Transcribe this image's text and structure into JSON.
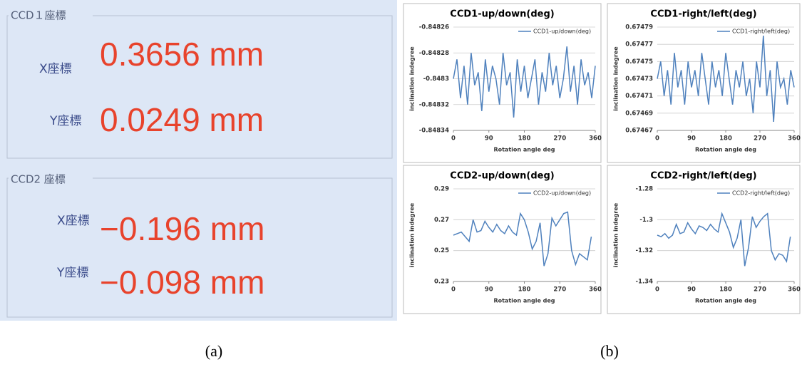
{
  "panel_a": {
    "sections": [
      {
        "heading": "CCD１座標",
        "rows": [
          {
            "label": "X座標",
            "value": "0.3656 mm"
          },
          {
            "label": "Y座標",
            "value": "0.0249 mm"
          }
        ]
      },
      {
        "heading": "CCD2 座標",
        "rows": [
          {
            "label": "X座標",
            "value": "−0.196 mm"
          },
          {
            "label": "Y座標",
            "value": "−0.098 mm"
          }
        ]
      }
    ]
  },
  "captions": [
    "(a)",
    "(b)"
  ],
  "chart_data": [
    {
      "type": "line",
      "title": "CCD1-up/down(deg)",
      "xlabel": "Rotation angle deg",
      "ylabel": "inclination indegree",
      "x": [
        0,
        9,
        18,
        27,
        36,
        45,
        54,
        63,
        72,
        81,
        90,
        99,
        108,
        117,
        126,
        135,
        144,
        153,
        162,
        171,
        180,
        189,
        198,
        207,
        216,
        225,
        234,
        243,
        252,
        261,
        270,
        279,
        288,
        297,
        306,
        315,
        324,
        333,
        342,
        351,
        360
      ],
      "series": [
        {
          "name": "CCD1-up/down(deg)",
          "color": "#4f81bd",
          "values": [
            -0.8483,
            -0.848285,
            -0.848315,
            -0.84829,
            -0.84832,
            -0.84828,
            -0.848305,
            -0.848295,
            -0.848325,
            -0.848285,
            -0.84831,
            -0.84829,
            -0.8483,
            -0.84832,
            -0.84828,
            -0.848305,
            -0.848295,
            -0.84833,
            -0.848285,
            -0.84831,
            -0.84829,
            -0.848315,
            -0.8483,
            -0.848285,
            -0.84832,
            -0.848295,
            -0.84831,
            -0.84828,
            -0.848305,
            -0.84829,
            -0.848315,
            -0.8483,
            -0.848275,
            -0.84831,
            -0.84829,
            -0.84832,
            -0.848285,
            -0.848305,
            -0.848295,
            -0.848315,
            -0.84829
          ]
        }
      ],
      "xlim": [
        0,
        360
      ],
      "xticks": [
        0,
        90,
        180,
        270,
        360
      ],
      "ylim": [
        -0.84834,
        -0.84826
      ],
      "yticks": [
        -0.84826,
        -0.84828,
        -0.8483,
        -0.84832,
        -0.84834
      ],
      "grid": true,
      "legend": "upper right"
    },
    {
      "type": "line",
      "title": "CCD1-right/left(deg)",
      "xlabel": "Rotation angle deg",
      "ylabel": "inclination indegree",
      "x": [
        0,
        9,
        18,
        27,
        36,
        45,
        54,
        63,
        72,
        81,
        90,
        99,
        108,
        117,
        126,
        135,
        144,
        153,
        162,
        171,
        180,
        189,
        198,
        207,
        216,
        225,
        234,
        243,
        252,
        261,
        270,
        279,
        288,
        297,
        306,
        315,
        324,
        333,
        342,
        351,
        360
      ],
      "series": [
        {
          "name": "CCD1-right/left(deg)",
          "color": "#4f81bd",
          "values": [
            0.67473,
            0.67475,
            0.67471,
            0.67474,
            0.6747,
            0.67476,
            0.67472,
            0.67474,
            0.6747,
            0.67475,
            0.67472,
            0.67474,
            0.67471,
            0.67476,
            0.67473,
            0.6747,
            0.67475,
            0.67472,
            0.67474,
            0.67471,
            0.67476,
            0.67473,
            0.6747,
            0.67474,
            0.67472,
            0.67475,
            0.67471,
            0.67473,
            0.67469,
            0.67475,
            0.67472,
            0.67478,
            0.67471,
            0.67474,
            0.67468,
            0.67475,
            0.67472,
            0.67473,
            0.6747,
            0.67474,
            0.67472
          ]
        }
      ],
      "xlim": [
        0,
        360
      ],
      "xticks": [
        0,
        90,
        180,
        270,
        360
      ],
      "ylim": [
        0.67467,
        0.67479
      ],
      "yticks": [
        0.67479,
        0.67477,
        0.67475,
        0.67473,
        0.67471,
        0.67469,
        0.67467
      ],
      "grid": true,
      "legend": "upper right"
    },
    {
      "type": "line",
      "title": "CCD2-up/down(deg)",
      "xlabel": "Rotation angle deg",
      "ylabel": "inclination indegree",
      "x": [
        0,
        10,
        20,
        30,
        40,
        50,
        60,
        70,
        80,
        90,
        100,
        110,
        120,
        130,
        140,
        150,
        160,
        170,
        180,
        190,
        200,
        210,
        220,
        230,
        240,
        250,
        260,
        270,
        280,
        290,
        300,
        310,
        320,
        330,
        340,
        350
      ],
      "series": [
        {
          "name": "CCD2-up/down(deg)",
          "color": "#4f81bd",
          "values": [
            0.26,
            0.261,
            0.262,
            0.259,
            0.256,
            0.27,
            0.262,
            0.263,
            0.269,
            0.265,
            0.262,
            0.267,
            0.263,
            0.261,
            0.266,
            0.262,
            0.26,
            0.274,
            0.27,
            0.262,
            0.251,
            0.256,
            0.268,
            0.24,
            0.248,
            0.271,
            0.266,
            0.27,
            0.274,
            0.275,
            0.25,
            0.241,
            0.248,
            0.246,
            0.244,
            0.259
          ]
        }
      ],
      "xlim": [
        0,
        360
      ],
      "xticks": [
        0,
        90,
        180,
        270,
        360
      ],
      "ylim": [
        0.23,
        0.29
      ],
      "yticks": [
        0.29,
        0.27,
        0.25,
        0.23
      ],
      "grid": true,
      "legend": "upper right"
    },
    {
      "type": "line",
      "title": "CCD2-right/left(deg)",
      "xlabel": "Rotation angle deg",
      "ylabel": "inclination indegree",
      "x": [
        0,
        10,
        20,
        30,
        40,
        50,
        60,
        70,
        80,
        90,
        100,
        110,
        120,
        130,
        140,
        150,
        160,
        170,
        180,
        190,
        200,
        210,
        220,
        230,
        240,
        250,
        260,
        270,
        280,
        290,
        300,
        310,
        320,
        330,
        340,
        350
      ],
      "series": [
        {
          "name": "CCD2-right/left(deg)",
          "color": "#4f81bd",
          "values": [
            -1.31,
            -1.311,
            -1.309,
            -1.312,
            -1.31,
            -1.303,
            -1.309,
            -1.308,
            -1.302,
            -1.306,
            -1.309,
            -1.304,
            -1.305,
            -1.307,
            -1.303,
            -1.306,
            -1.308,
            -1.296,
            -1.302,
            -1.308,
            -1.318,
            -1.312,
            -1.3,
            -1.33,
            -1.318,
            -1.298,
            -1.305,
            -1.301,
            -1.298,
            -1.296,
            -1.32,
            -1.326,
            -1.322,
            -1.323,
            -1.327,
            -1.311
          ]
        }
      ],
      "xlim": [
        0,
        360
      ],
      "xticks": [
        0,
        90,
        180,
        270,
        360
      ],
      "ylim": [
        -1.34,
        -1.28
      ],
      "yticks": [
        -1.28,
        -1.3,
        -1.32,
        -1.34
      ],
      "grid": true,
      "legend": "upper right"
    }
  ]
}
